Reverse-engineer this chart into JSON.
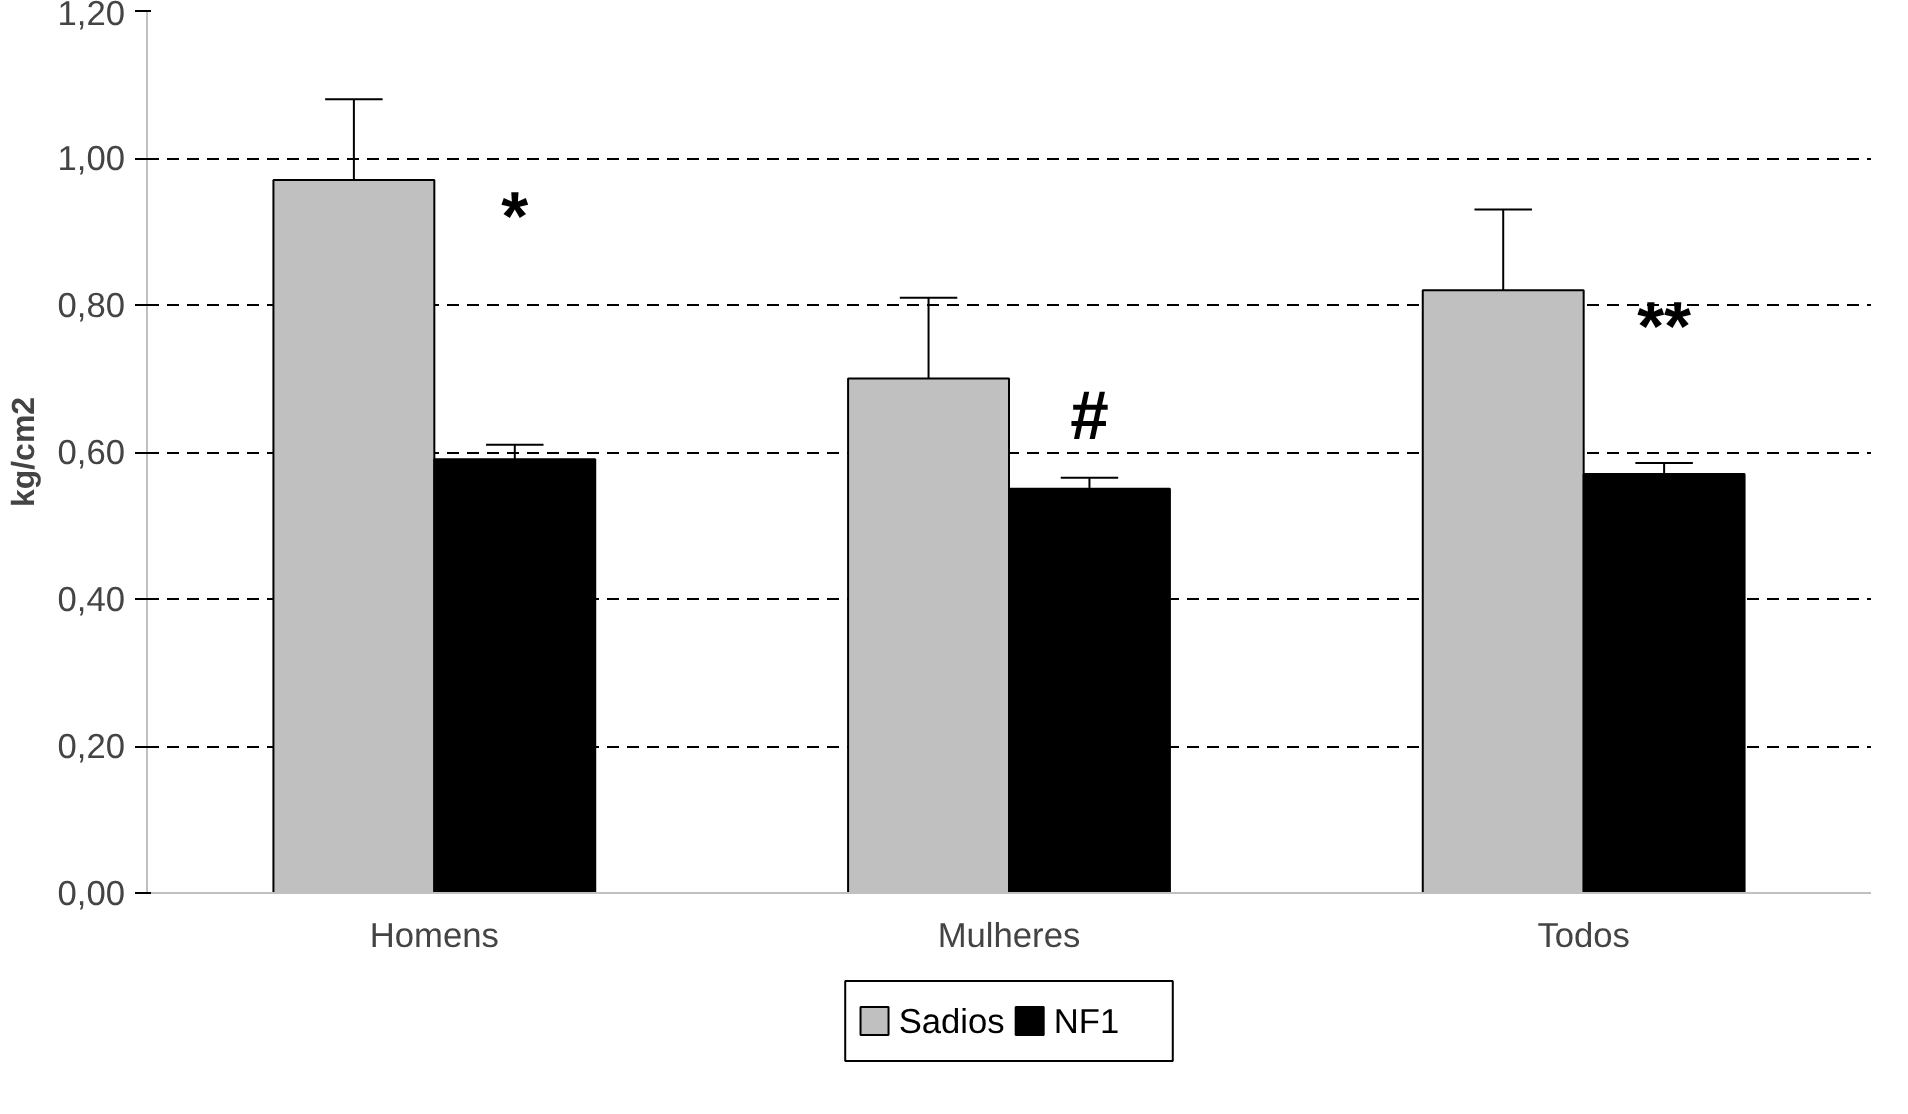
{
  "chart_data": {
    "type": "bar",
    "ylabel": "kg/cm2",
    "categories": [
      "Homens",
      "Mulheres",
      "Todos"
    ],
    "series": [
      {
        "name": "Sadios",
        "color": "#c0c0c0",
        "values": [
          0.97,
          0.7,
          0.82
        ],
        "errors": [
          [
            0.97,
            1.08
          ],
          [
            0.7,
            0.81
          ],
          [
            0.82,
            0.93
          ]
        ]
      },
      {
        "name": "NF1",
        "color": "#000000",
        "values": [
          0.59,
          0.55,
          0.57
        ],
        "errors": [
          [
            0.59,
            0.61
          ],
          [
            0.55,
            0.565
          ],
          [
            0.57,
            0.585
          ]
        ]
      }
    ],
    "ylim": [
      0,
      1.2
    ],
    "yticks": [
      {
        "value": 0,
        "label": "0,00"
      },
      {
        "value": 0.2,
        "label": "0,20"
      },
      {
        "value": 0.4,
        "label": "0,40"
      },
      {
        "value": 0.6,
        "label": "0,60"
      },
      {
        "value": 0.8,
        "label": "0,80"
      },
      {
        "value": 1.0,
        "label": "1,00"
      },
      {
        "value": 1.2,
        "label": "1,20"
      }
    ],
    "grid": "y",
    "legend": "bottom",
    "annotations": [
      "*",
      "#",
      "**"
    ]
  }
}
